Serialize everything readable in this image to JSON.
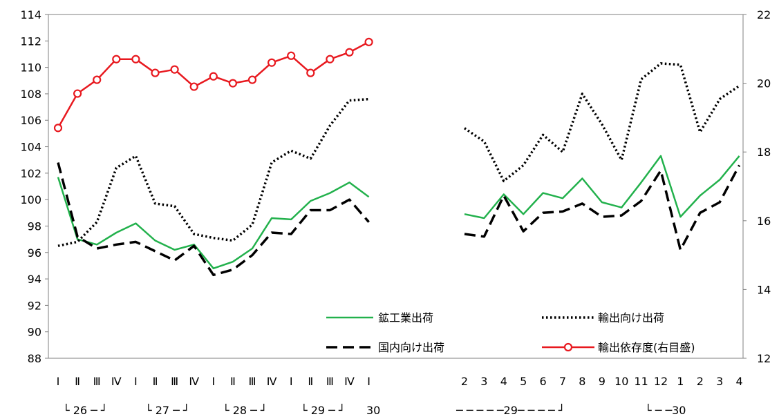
{
  "chart_data": {
    "type": "line",
    "title": "",
    "left_axis": {
      "ylim": [
        88,
        114
      ],
      "ticks": [
        "88",
        "90",
        "92",
        "94",
        "96",
        "98",
        "100",
        "102",
        "104",
        "106",
        "108",
        "110",
        "112",
        "114"
      ]
    },
    "right_axis": {
      "ylim": [
        12,
        22
      ],
      "ticks": [
        "12",
        "14",
        "16",
        "18",
        "20",
        "22"
      ]
    },
    "grid": false,
    "legend_position": "bottom-right inside plot",
    "quarterly_panel": {
      "x_labels": [
        "Ⅰ",
        "Ⅱ",
        "Ⅲ",
        "Ⅳ",
        "Ⅰ",
        "Ⅱ",
        "Ⅲ",
        "Ⅳ",
        "Ⅰ",
        "Ⅱ",
        "Ⅲ",
        "Ⅳ",
        "Ⅰ",
        "Ⅱ",
        "Ⅲ",
        "Ⅳ",
        "Ⅰ"
      ],
      "year_labels": [
        "└ 26 ─ ┘",
        "└ 27 ─ ┘",
        "└ 28 ─ ┘",
        "└ 29 ─ ┘",
        "30"
      ]
    },
    "monthly_panel": {
      "x_labels": [
        "2",
        "3",
        "4",
        "5",
        "6",
        "7",
        "8",
        "9",
        "10",
        "11",
        "12",
        "1",
        "2",
        "3",
        "4"
      ],
      "year_labels": [
        "─ ─ ─ ─ ─29─ ─ ─ ─ ┘",
        "└ ─ ─30"
      ]
    },
    "series": [
      {
        "name": "鉱工業出荷",
        "axis": "left",
        "color": "#22b14c",
        "style": "solid",
        "quarterly": [
          101.7,
          97.0,
          96.6,
          97.5,
          98.2,
          96.9,
          96.2,
          96.6,
          94.8,
          95.3,
          96.3,
          98.6,
          98.5,
          99.9,
          100.5,
          101.3,
          100.2
        ],
        "monthly": [
          98.9,
          98.6,
          100.4,
          98.9,
          100.5,
          100.1,
          101.6,
          99.8,
          99.4,
          101.3,
          103.3,
          98.7,
          100.3,
          101.5,
          103.3
        ]
      },
      {
        "name": "輸出向け出荷",
        "axis": "left",
        "color": "#000000",
        "style": "dotted",
        "quarterly": [
          96.5,
          96.8,
          98.3,
          102.4,
          103.3,
          99.7,
          99.5,
          97.4,
          97.1,
          96.9,
          98.1,
          102.8,
          103.7,
          103.1,
          105.6,
          107.5,
          107.6
        ],
        "monthly": [
          105.4,
          104.4,
          101.4,
          102.6,
          104.9,
          103.6,
          108.0,
          105.7,
          103.0,
          109.1,
          110.3,
          110.2,
          105.1,
          107.6,
          108.6
        ]
      },
      {
        "name": "国内向け出荷",
        "axis": "left",
        "color": "#000000",
        "style": "dashed",
        "quarterly": [
          102.8,
          97.2,
          96.3,
          96.6,
          96.8,
          96.1,
          95.4,
          96.5,
          94.3,
          94.7,
          95.8,
          97.5,
          97.4,
          99.2,
          99.2,
          100.0,
          98.3
        ],
        "monthly": [
          97.4,
          97.2,
          100.3,
          97.6,
          99.0,
          99.1,
          99.7,
          98.7,
          98.8,
          99.9,
          102.2,
          96.2,
          99.0,
          99.8,
          102.6
        ]
      },
      {
        "name": "輸出依存度(右目盛)",
        "axis": "right",
        "color": "#e8191f",
        "style": "solid-circle-markers",
        "quarterly": [
          18.7,
          19.7,
          20.1,
          20.7,
          20.7,
          20.3,
          20.4,
          19.9,
          20.2,
          20.0,
          20.1,
          20.6,
          20.8,
          20.3,
          20.7,
          20.9,
          21.2
        ],
        "monthly": []
      }
    ]
  }
}
